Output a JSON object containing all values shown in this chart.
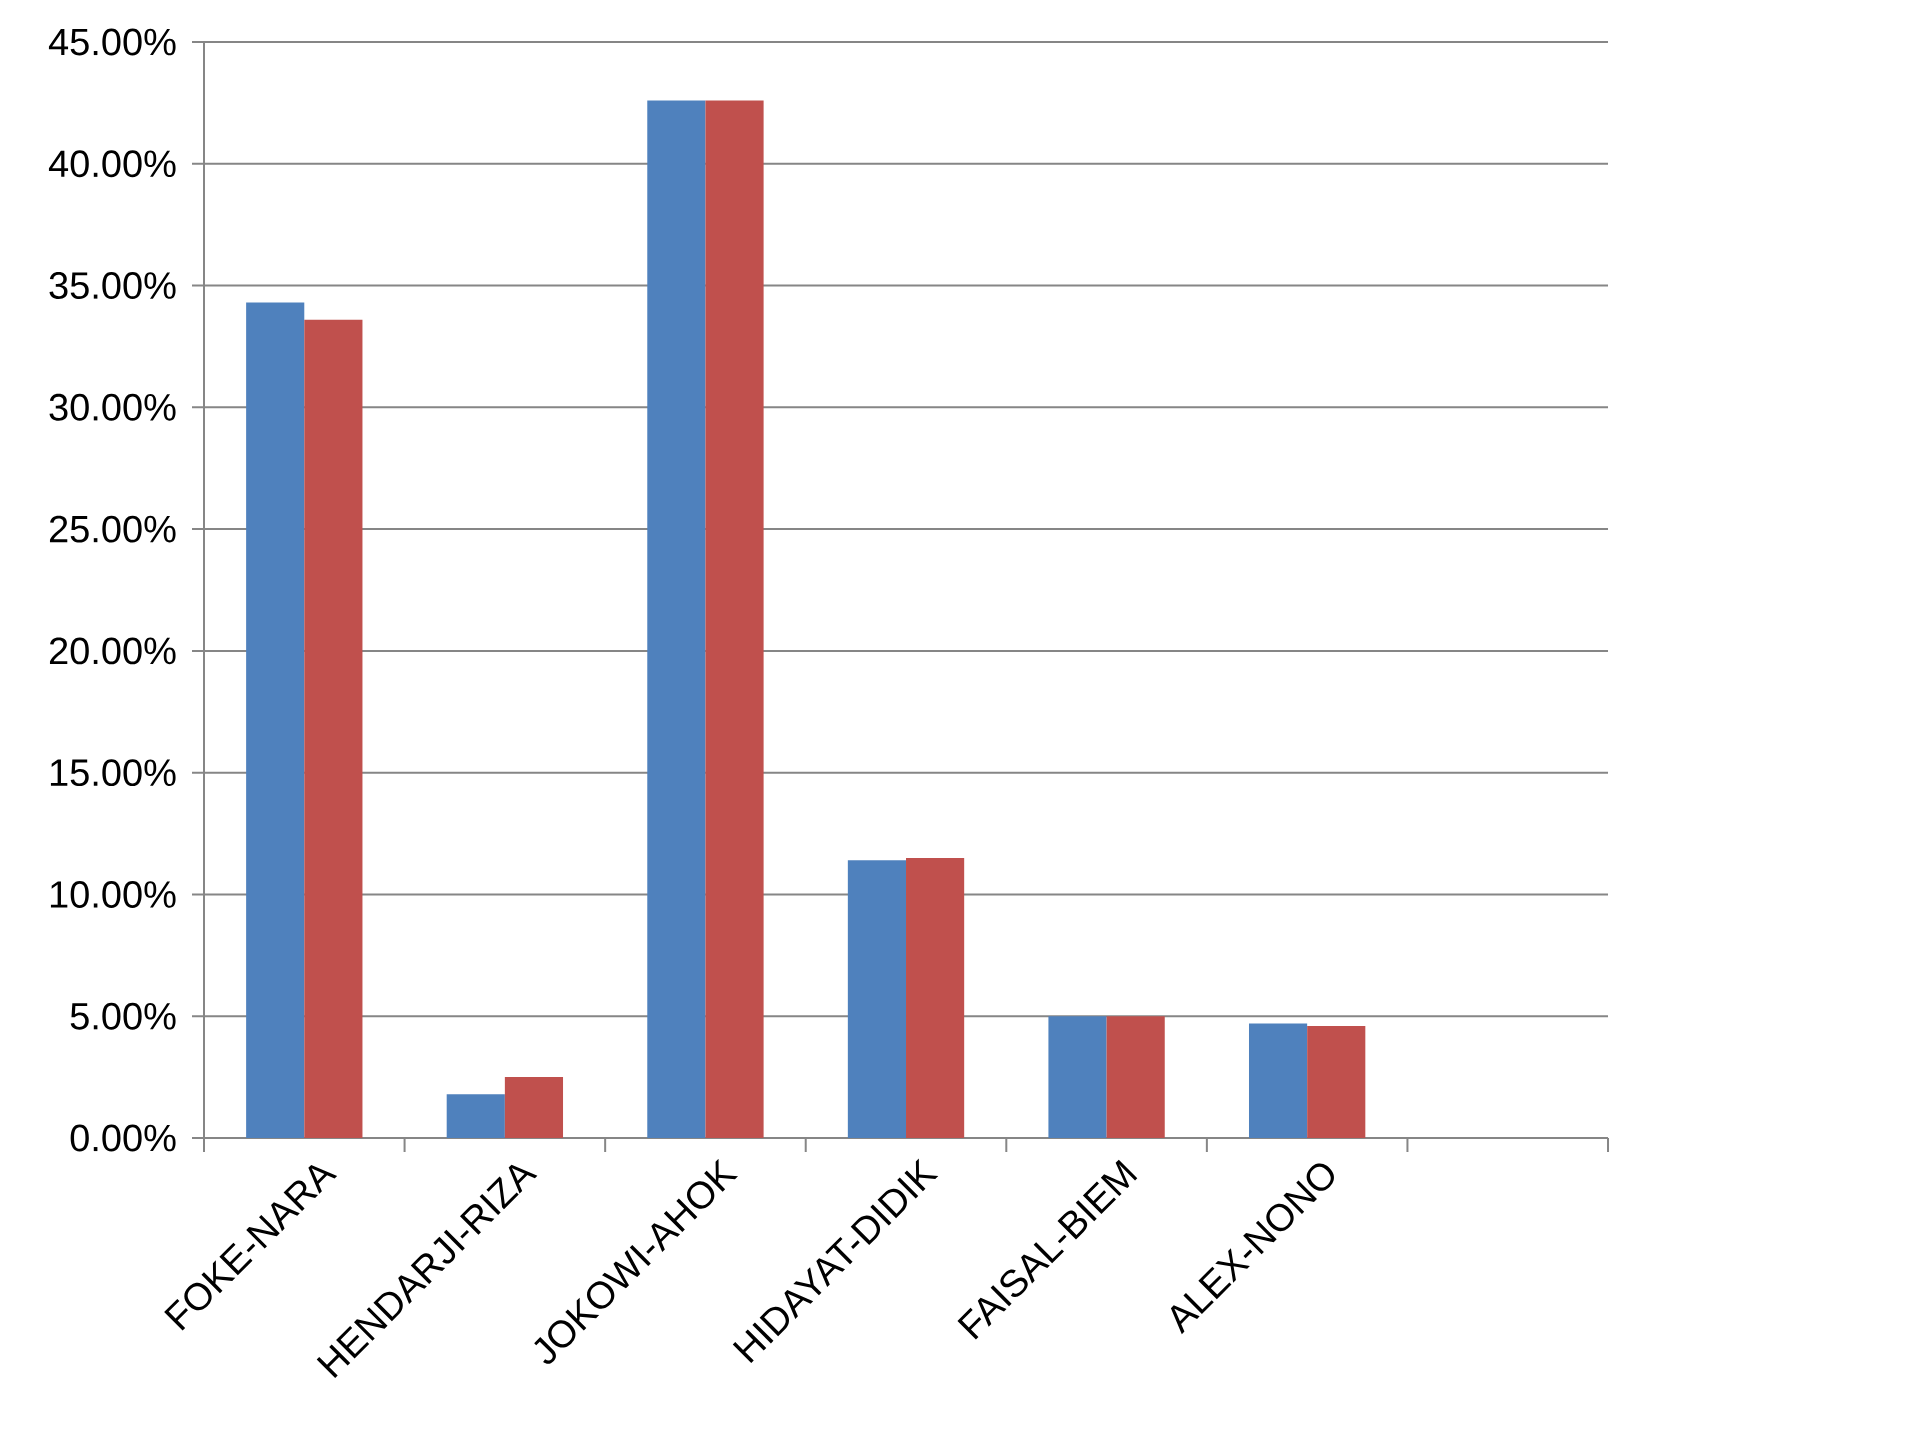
{
  "chart_data": {
    "type": "bar",
    "categories": [
      "FOKE-NARA",
      "HENDARJI-RIZA",
      "JOKOWI-AHOK",
      "HIDAYAT-DIDIK",
      "FAISAL-BIEM",
      "ALEX-NONO",
      null
    ],
    "series": [
      {
        "color": "#4f81bd",
        "values": [
          34.3,
          1.8,
          42.6,
          11.4,
          5.0,
          4.7,
          null
        ]
      },
      {
        "color": "#c0504d",
        "values": [
          33.6,
          2.5,
          42.6,
          11.5,
          5.0,
          4.6,
          null
        ]
      }
    ],
    "ylim": [
      0,
      45
    ],
    "yticks": [
      {
        "value": 0,
        "label": "0.00%"
      },
      {
        "value": 5,
        "label": "5.00%"
      },
      {
        "value": 10,
        "label": "10.00%"
      },
      {
        "value": 15,
        "label": "15.00%"
      },
      {
        "value": 20,
        "label": "20.00%"
      },
      {
        "value": 25,
        "label": "25.00%"
      },
      {
        "value": 30,
        "label": "30.00%"
      },
      {
        "value": 35,
        "label": "35.00%"
      },
      {
        "value": 40,
        "label": "40.00%"
      },
      {
        "value": 45,
        "label": "45.00%"
      }
    ],
    "grid": "y"
  }
}
